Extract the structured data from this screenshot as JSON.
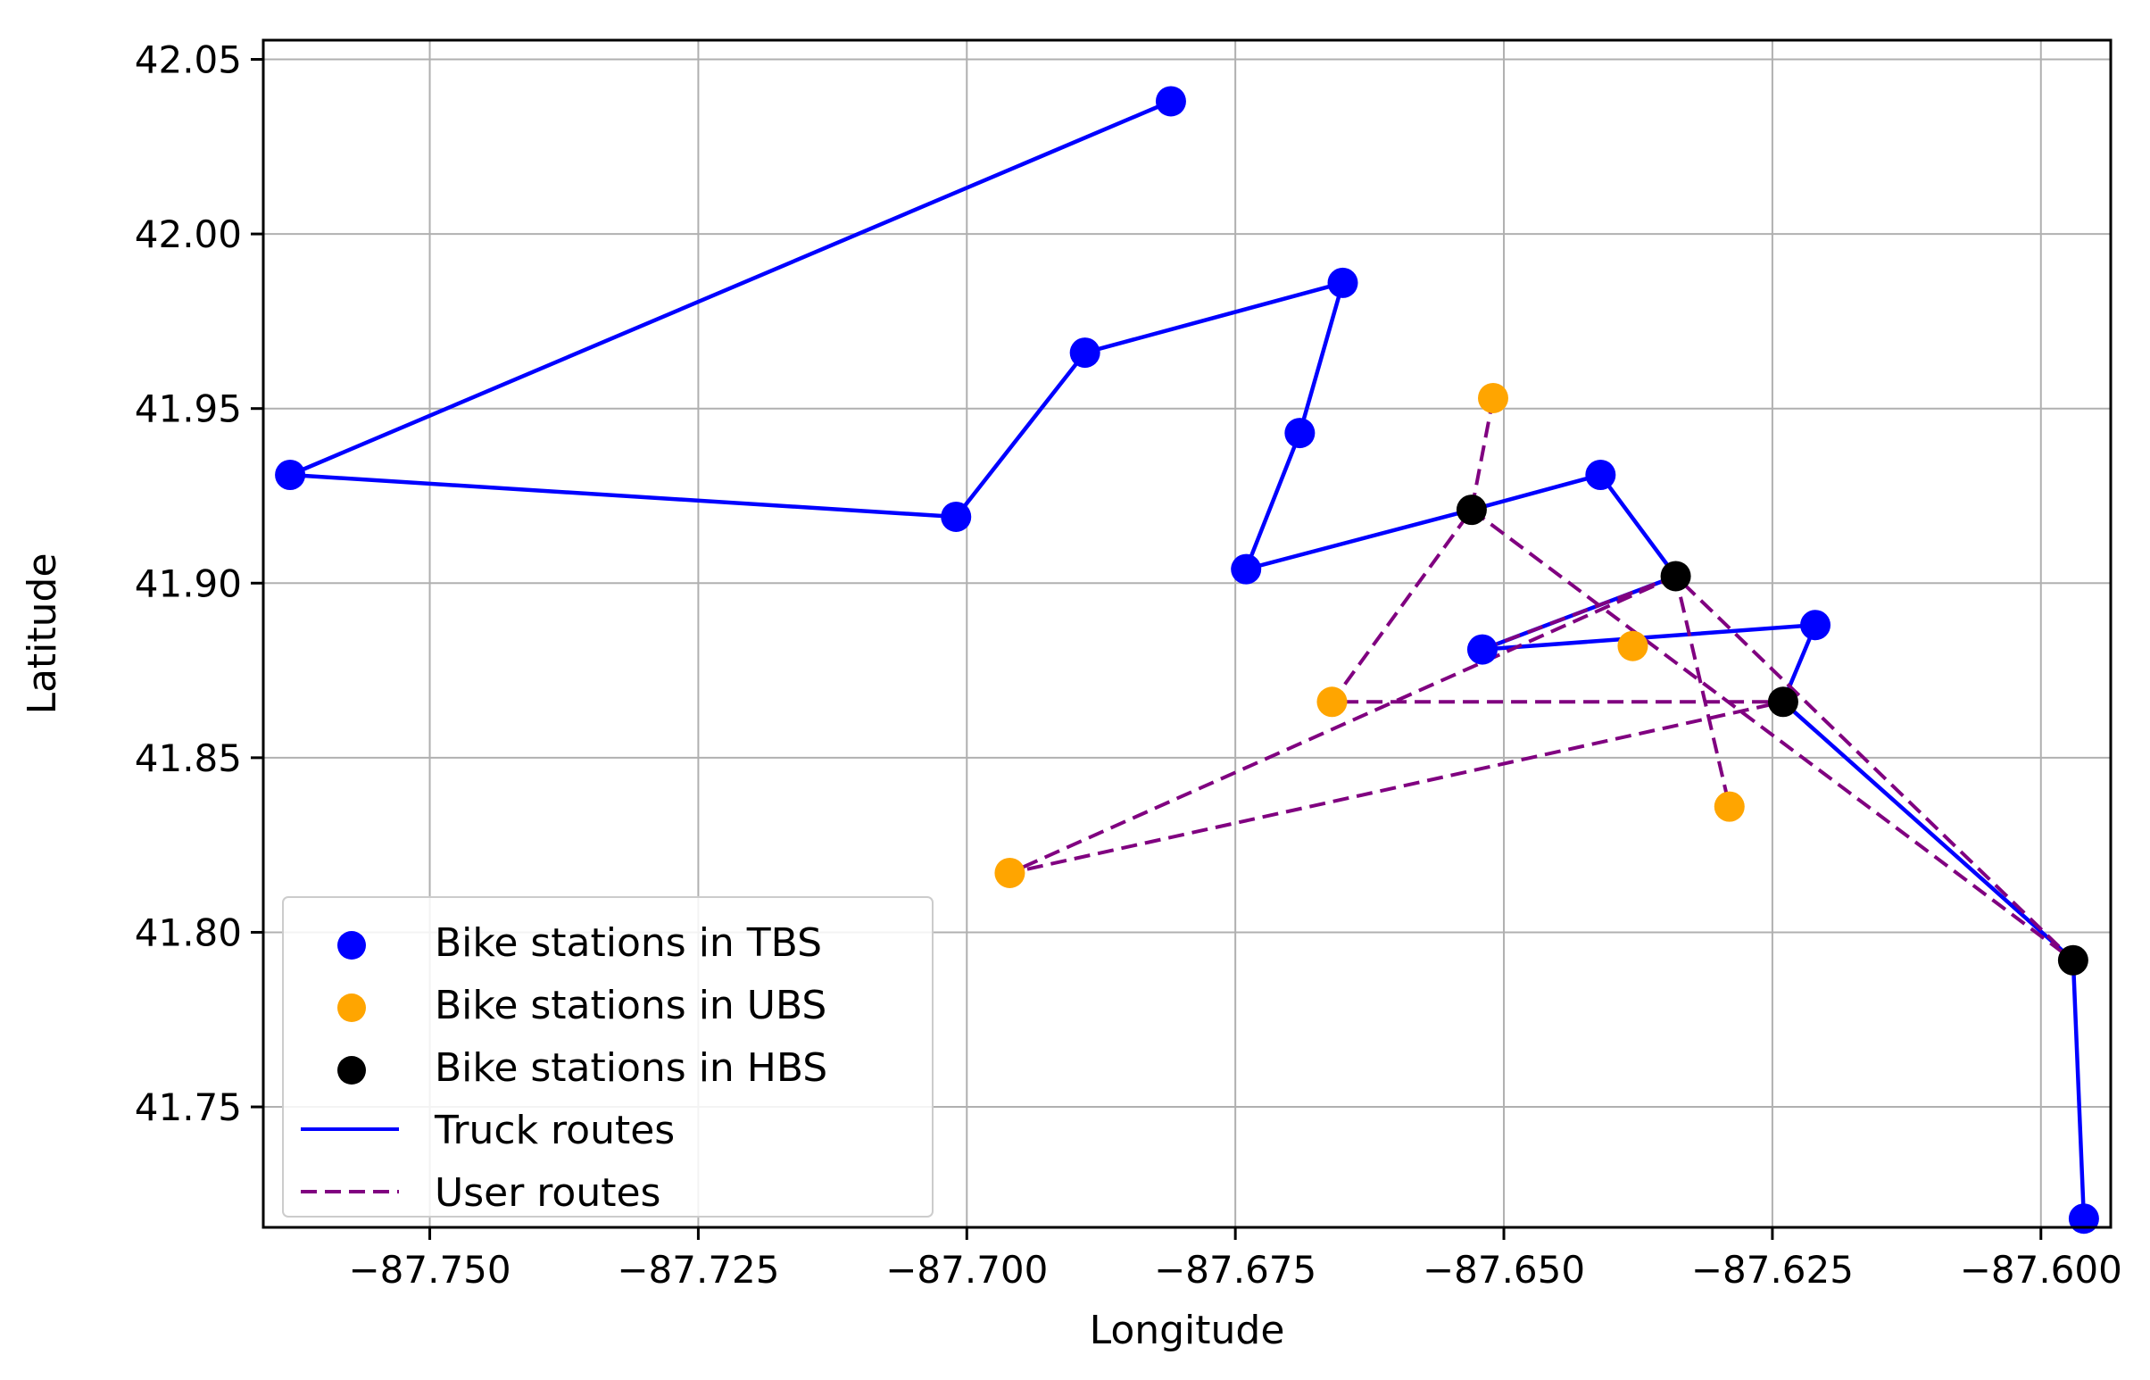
{
  "chart_data": {
    "type": "scatter",
    "xlabel": "Longitude",
    "ylabel": "Latitude",
    "xlim": [
      -87.7655,
      -87.5935
    ],
    "ylim": [
      41.7155,
      42.0555
    ],
    "xticks": [
      -87.75,
      -87.725,
      -87.7,
      -87.675,
      -87.65,
      -87.625,
      -87.6
    ],
    "xtick_labels": [
      "−87.750",
      "−87.725",
      "−87.700",
      "−87.675",
      "−87.650",
      "−87.625",
      "−87.600"
    ],
    "yticks": [
      41.75,
      41.8,
      41.85,
      41.9,
      41.95,
      42.0,
      42.05
    ],
    "ytick_labels": [
      "41.75",
      "41.80",
      "41.85",
      "41.90",
      "41.95",
      "42.00",
      "42.05"
    ],
    "grid": true,
    "legend_position": "lower-left",
    "stations": [
      {
        "name": "Bike stations in TBS",
        "color": "#0000ff",
        "points": [
          [
            -87.681,
            42.038
          ],
          [
            -87.763,
            41.931
          ],
          [
            -87.701,
            41.919
          ],
          [
            -87.689,
            41.966
          ],
          [
            -87.665,
            41.986
          ],
          [
            -87.669,
            41.943
          ],
          [
            -87.674,
            41.904
          ],
          [
            -87.641,
            41.931
          ],
          [
            -87.652,
            41.881
          ],
          [
            -87.621,
            41.888
          ],
          [
            -87.596,
            41.718
          ]
        ]
      },
      {
        "name": "Bike stations in UBS",
        "color": "#ffa500",
        "points": [
          [
            -87.651,
            41.953
          ],
          [
            -87.638,
            41.882
          ],
          [
            -87.666,
            41.866
          ],
          [
            -87.629,
            41.836
          ],
          [
            -87.696,
            41.817
          ]
        ]
      },
      {
        "name": "Bike stations in HBS",
        "color": "#000000",
        "points": [
          [
            -87.653,
            41.921
          ],
          [
            -87.634,
            41.902
          ],
          [
            -87.624,
            41.866
          ],
          [
            -87.597,
            41.792
          ]
        ]
      }
    ],
    "routes": [
      {
        "name": "Truck routes",
        "color": "#0000ff",
        "dash": "solid",
        "paths": [
          [
            [
              -87.681,
              42.038
            ],
            [
              -87.763,
              41.931
            ],
            [
              -87.701,
              41.919
            ],
            [
              -87.689,
              41.966
            ],
            [
              -87.665,
              41.986
            ],
            [
              -87.669,
              41.943
            ],
            [
              -87.674,
              41.904
            ],
            [
              -87.653,
              41.921
            ],
            [
              -87.641,
              41.931
            ],
            [
              -87.634,
              41.902
            ],
            [
              -87.652,
              41.881
            ],
            [
              -87.621,
              41.888
            ],
            [
              -87.624,
              41.866
            ],
            [
              -87.597,
              41.792
            ],
            [
              -87.596,
              41.718
            ]
          ]
        ]
      },
      {
        "name": "User routes",
        "color": "#800080",
        "dash": "dashed",
        "paths": [
          [
            [
              -87.651,
              41.953
            ],
            [
              -87.653,
              41.921
            ],
            [
              -87.666,
              41.866
            ],
            [
              -87.624,
              41.866
            ]
          ],
          [
            [
              -87.653,
              41.921
            ],
            [
              -87.597,
              41.792
            ],
            [
              -87.634,
              41.902
            ],
            [
              -87.629,
              41.836
            ]
          ],
          [
            [
              -87.634,
              41.902
            ],
            [
              -87.696,
              41.817
            ],
            [
              -87.624,
              41.866
            ]
          ],
          [
            [
              -87.652,
              41.881
            ],
            [
              -87.634,
              41.902
            ]
          ]
        ]
      }
    ],
    "legend": [
      {
        "label": "Bike stations in TBS",
        "kind": "marker",
        "color": "#0000ff"
      },
      {
        "label": "Bike stations in UBS",
        "kind": "marker",
        "color": "#ffa500"
      },
      {
        "label": "Bike stations in HBS",
        "kind": "marker",
        "color": "#000000"
      },
      {
        "label": "Truck routes",
        "kind": "line",
        "color": "#0000ff",
        "dash": "solid"
      },
      {
        "label": "User routes",
        "kind": "line",
        "color": "#800080",
        "dash": "dashed"
      }
    ]
  }
}
